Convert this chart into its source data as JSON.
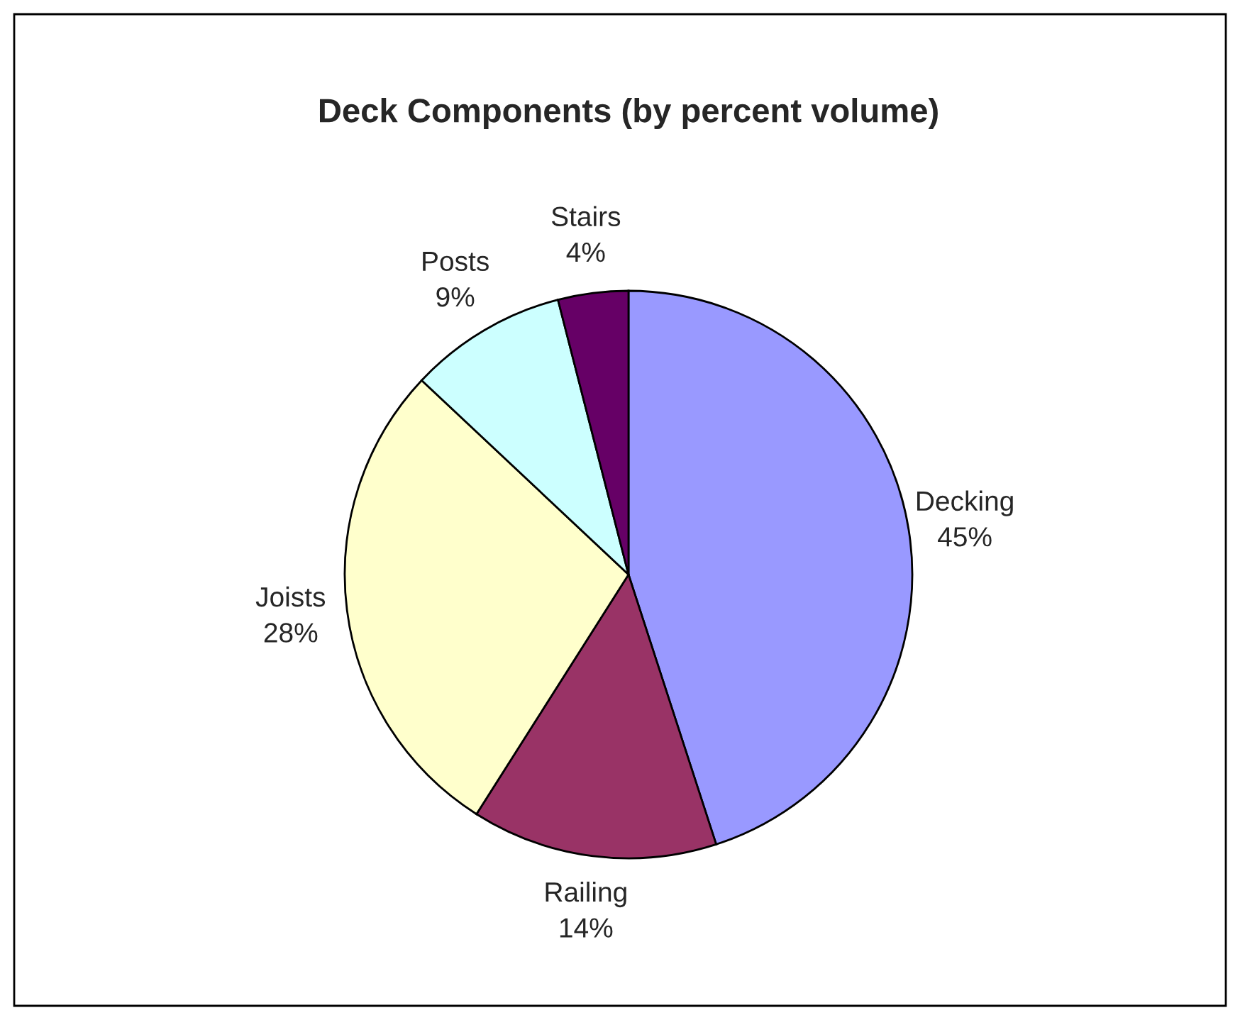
{
  "chart_data": {
    "type": "pie",
    "title": "Deck Components (by percent volume)",
    "categories": [
      "Decking",
      "Railing",
      "Joists",
      "Posts",
      "Stairs"
    ],
    "values": [
      45,
      14,
      28,
      9,
      4
    ],
    "colors": [
      "#9999ff",
      "#993366",
      "#ffffcc",
      "#ccffff",
      "#660066"
    ],
    "value_labels": [
      "45%",
      "14%",
      "28%",
      "9%",
      "4%"
    ],
    "legend": false
  }
}
